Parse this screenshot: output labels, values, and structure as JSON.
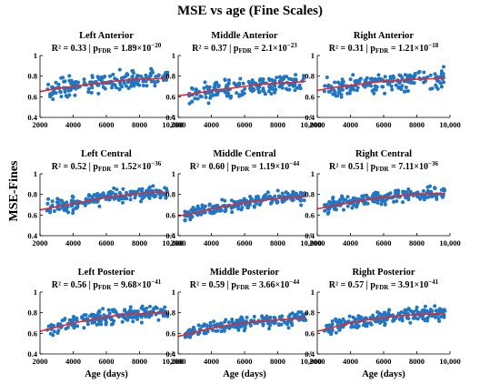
{
  "figure": {
    "title": "MSE vs age (Fine Scales)",
    "ylabel": "MSE-Fines",
    "xlabel": "Age (days)"
  },
  "colors": {
    "points": "#1f77c4",
    "fit": "#e8262b",
    "axis": "#000000"
  },
  "chart_data": [
    {
      "type": "scatter",
      "title": "Left Anterior",
      "r2": "R² = 0.33",
      "p_label": "p",
      "p_sub": "FDR",
      "p_mant": "= 1.89×10",
      "p_exp": "−20",
      "xlim": [
        2000,
        10000
      ],
      "ylim": [
        0.4,
        1
      ],
      "xticks": [
        2000,
        4000,
        6000,
        8000,
        10000
      ],
      "xtick_labels": [
        "2000",
        "4000",
        "6000",
        "8000",
        "10,000"
      ],
      "yticks": [
        0.4,
        0.6,
        0.8,
        1
      ],
      "ytick_labels": [
        "0.4",
        "0.6",
        "0.8",
        "1"
      ],
      "fit": {
        "x": [
          2000,
          3000,
          4000,
          5000,
          6000,
          7000,
          8000,
          9000,
          9700
        ],
        "y": [
          0.65,
          0.68,
          0.7,
          0.72,
          0.74,
          0.76,
          0.77,
          0.775,
          0.78
        ]
      },
      "scatter": {
        "mean": [
          0.64,
          0.78
        ],
        "spread": 0.075,
        "n": 190
      }
    },
    {
      "type": "scatter",
      "title": "Middle Anterior",
      "r2": "R² = 0.37",
      "p_label": "p",
      "p_sub": "FDR",
      "p_mant": "= 2.1×10",
      "p_exp": "−23",
      "xlim": [
        2000,
        10000
      ],
      "ylim": [
        0.4,
        1
      ],
      "xticks": [
        2000,
        4000,
        6000,
        8000,
        10000
      ],
      "xtick_labels": [
        "2000",
        "4000",
        "6000",
        "8000",
        "10,000"
      ],
      "yticks": [
        0.4,
        0.6,
        0.8,
        1
      ],
      "ytick_labels": [
        "0.4",
        "0.6",
        "0.8",
        "1"
      ],
      "fit": {
        "x": [
          2000,
          3000,
          4000,
          5000,
          6000,
          7000,
          8000,
          9000,
          9700
        ],
        "y": [
          0.61,
          0.63,
          0.66,
          0.68,
          0.7,
          0.72,
          0.73,
          0.74,
          0.75
        ]
      },
      "scatter": {
        "mean": [
          0.6,
          0.75
        ],
        "spread": 0.08,
        "n": 190
      }
    },
    {
      "type": "scatter",
      "title": "Right Anterior",
      "r2": "R² = 0.31",
      "p_label": "p",
      "p_sub": "FDR",
      "p_mant": "= 1.21×10",
      "p_exp": "−18",
      "xlim": [
        2000,
        10000
      ],
      "ylim": [
        0.4,
        1
      ],
      "xticks": [
        2000,
        4000,
        6000,
        8000,
        10000
      ],
      "xtick_labels": [
        "2000",
        "4000",
        "6000",
        "8000",
        "10,000"
      ],
      "yticks": [
        0.4,
        0.6,
        0.8,
        1
      ],
      "ytick_labels": [
        "0.4",
        "0.6",
        "0.8",
        "1"
      ],
      "fit": {
        "x": [
          2000,
          3000,
          4000,
          5000,
          6000,
          7000,
          8000,
          9000,
          9700
        ],
        "y": [
          0.66,
          0.69,
          0.71,
          0.73,
          0.75,
          0.76,
          0.77,
          0.775,
          0.78
        ]
      },
      "scatter": {
        "mean": [
          0.65,
          0.78
        ],
        "spread": 0.075,
        "n": 190
      }
    },
    {
      "type": "scatter",
      "title": "Left Central",
      "r2": "R² = 0.52",
      "p_label": "p",
      "p_sub": "FDR",
      "p_mant": "= 1.52×10",
      "p_exp": "−36",
      "xlim": [
        2000,
        10000
      ],
      "ylim": [
        0.4,
        1
      ],
      "xticks": [
        2000,
        4000,
        6000,
        8000,
        10000
      ],
      "xtick_labels": [
        "2000",
        "4000",
        "6000",
        "8000",
        "10,000"
      ],
      "yticks": [
        0.4,
        0.6,
        0.8,
        1
      ],
      "ytick_labels": [
        "0.4",
        "0.6",
        "0.8",
        "1"
      ],
      "fit": {
        "x": [
          2000,
          3000,
          4000,
          5000,
          6000,
          7000,
          8000,
          9000,
          9700
        ],
        "y": [
          0.65,
          0.68,
          0.71,
          0.74,
          0.77,
          0.79,
          0.81,
          0.82,
          0.82
        ]
      },
      "scatter": {
        "mean": [
          0.64,
          0.83
        ],
        "spread": 0.055,
        "n": 200
      }
    },
    {
      "type": "scatter",
      "title": "Middle Central",
      "r2": "R² = 0.60",
      "p_label": "p",
      "p_sub": "FDR",
      "p_mant": "= 1.19×10",
      "p_exp": "−44",
      "xlim": [
        2000,
        10000
      ],
      "ylim": [
        0.4,
        1
      ],
      "xticks": [
        2000,
        4000,
        6000,
        8000,
        10000
      ],
      "xtick_labels": [
        "2000",
        "4000",
        "6000",
        "8000",
        "10,000"
      ],
      "yticks": [
        0.4,
        0.6,
        0.8,
        1
      ],
      "ytick_labels": [
        "0.4",
        "0.6",
        "0.8",
        "1"
      ],
      "fit": {
        "x": [
          2000,
          3000,
          4000,
          5000,
          6000,
          7000,
          8000,
          9000,
          9700
        ],
        "y": [
          0.59,
          0.62,
          0.66,
          0.69,
          0.72,
          0.74,
          0.76,
          0.77,
          0.78
        ]
      },
      "scatter": {
        "mean": [
          0.58,
          0.78
        ],
        "spread": 0.05,
        "n": 200
      }
    },
    {
      "type": "scatter",
      "title": "Right Central",
      "r2": "R² = 0.51",
      "p_label": "p",
      "p_sub": "FDR",
      "p_mant": "= 7.11×10",
      "p_exp": "−36",
      "xlim": [
        2000,
        10000
      ],
      "ylim": [
        0.4,
        1
      ],
      "xticks": [
        2000,
        4000,
        6000,
        8000,
        10000
      ],
      "xtick_labels": [
        "2000",
        "4000",
        "6000",
        "8000",
        "10,000"
      ],
      "yticks": [
        0.4,
        0.6,
        0.8,
        1
      ],
      "ytick_labels": [
        "0.4",
        "0.6",
        "0.8",
        "1"
      ],
      "fit": {
        "x": [
          2000,
          3000,
          4000,
          5000,
          6000,
          7000,
          8000,
          9000,
          9700
        ],
        "y": [
          0.66,
          0.69,
          0.72,
          0.75,
          0.77,
          0.79,
          0.8,
          0.81,
          0.81
        ]
      },
      "scatter": {
        "mean": [
          0.65,
          0.82
        ],
        "spread": 0.055,
        "n": 200
      }
    },
    {
      "type": "scatter",
      "title": "Left Posterior",
      "r2": "R² = 0.56",
      "p_label": "p",
      "p_sub": "FDR",
      "p_mant": "= 9.68×10",
      "p_exp": "−41",
      "xlim": [
        2000,
        10000
      ],
      "ylim": [
        0.4,
        1
      ],
      "xticks": [
        2000,
        4000,
        6000,
        8000,
        10000
      ],
      "xtick_labels": [
        "2000",
        "4000",
        "6000",
        "8000",
        "10,000"
      ],
      "yticks": [
        0.4,
        0.6,
        0.8,
        1
      ],
      "ytick_labels": [
        "0.4",
        "0.6",
        "0.8",
        "1"
      ],
      "fit": {
        "x": [
          2000,
          3000,
          4000,
          5000,
          6000,
          7000,
          8000,
          9000,
          9700
        ],
        "y": [
          0.62,
          0.66,
          0.7,
          0.73,
          0.76,
          0.78,
          0.79,
          0.8,
          0.8
        ]
      },
      "scatter": {
        "mean": [
          0.61,
          0.81
        ],
        "spread": 0.055,
        "n": 200
      }
    },
    {
      "type": "scatter",
      "title": "Middle Posterior",
      "r2": "R² = 0.59",
      "p_label": "p",
      "p_sub": "FDR",
      "p_mant": "= 3.66×10",
      "p_exp": "−44",
      "xlim": [
        2000,
        10000
      ],
      "ylim": [
        0.4,
        1
      ],
      "xticks": [
        2000,
        4000,
        6000,
        8000,
        10000
      ],
      "xtick_labels": [
        "2000",
        "4000",
        "6000",
        "8000",
        "10,000"
      ],
      "yticks": [
        0.4,
        0.6,
        0.8,
        1
      ],
      "ytick_labels": [
        "0.4",
        "0.6",
        "0.8",
        "1"
      ],
      "fit": {
        "x": [
          2000,
          3000,
          4000,
          5000,
          6000,
          7000,
          8000,
          9000,
          9700
        ],
        "y": [
          0.57,
          0.61,
          0.65,
          0.68,
          0.7,
          0.72,
          0.73,
          0.74,
          0.75
        ]
      },
      "scatter": {
        "mean": [
          0.56,
          0.75
        ],
        "spread": 0.05,
        "n": 200
      }
    },
    {
      "type": "scatter",
      "title": "Right Posterior",
      "r2": "R² = 0.57",
      "p_label": "p",
      "p_sub": "FDR",
      "p_mant": "= 3.91×10",
      "p_exp": "−41",
      "xlim": [
        2000,
        10000
      ],
      "ylim": [
        0.4,
        1
      ],
      "xticks": [
        2000,
        4000,
        6000,
        8000,
        10000
      ],
      "xtick_labels": [
        "2000",
        "4000",
        "6000",
        "8000",
        "10,000"
      ],
      "yticks": [
        0.4,
        0.6,
        0.8,
        1
      ],
      "ytick_labels": [
        "0.4",
        "0.6",
        "0.8",
        "1"
      ],
      "fit": {
        "x": [
          2000,
          3000,
          4000,
          5000,
          6000,
          7000,
          8000,
          9000,
          9700
        ],
        "y": [
          0.62,
          0.66,
          0.7,
          0.73,
          0.75,
          0.77,
          0.78,
          0.79,
          0.79
        ]
      },
      "scatter": {
        "mean": [
          0.61,
          0.8
        ],
        "spread": 0.055,
        "n": 200
      }
    }
  ]
}
